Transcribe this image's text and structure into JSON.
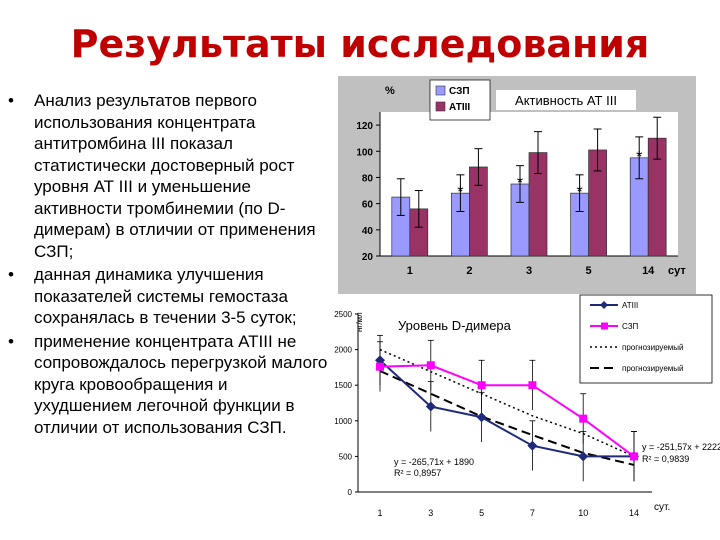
{
  "slide": {
    "title": "Результаты исследования",
    "bullet_symbol": "•",
    "bullets": [
      "Анализ результатов первого использования концентрата антитромбина III показал статистически достоверный рост уровня АТ III и уменьшение активности тромбинемии (по D-димерам) в отличии от применения СЗП;",
      "данная динамика улучшения показателей системы гемостаза сохранялась в течении 3-5 суток;",
      "применение концентрата АТIII не сопровождалось перегрузкой малого круга кровообращения и ухудшением легочной функции в отличии от использования СЗП."
    ]
  },
  "chart_data": [
    {
      "type": "bar",
      "title": "Активность АТ III",
      "ylabel": "%",
      "xlabel": "сут",
      "ylim": [
        20,
        130
      ],
      "yticks": [
        "20",
        "40",
        "60",
        "80",
        "100",
        "120"
      ],
      "categories": [
        "1",
        "2",
        "3",
        "5",
        "14"
      ],
      "series": [
        {
          "name": "СЗП",
          "values": [
            65,
            68,
            75,
            68,
            95
          ],
          "color": "#9999ff",
          "errors": [
            14,
            14,
            14,
            14,
            16
          ]
        },
        {
          "name": "АТIII",
          "values": [
            56,
            88,
            99,
            101,
            110
          ],
          "color": "#993366",
          "errors": [
            14,
            14,
            16,
            16,
            16
          ]
        }
      ],
      "annotations": [
        "*",
        "*",
        "*",
        "*"
      ],
      "legend_position": "top-left",
      "grid": false
    },
    {
      "type": "line",
      "title": "Уровень D-димера",
      "ylabel": "нг/мл",
      "xlabel": "сут.",
      "ylim": [
        0,
        2500
      ],
      "yticks": [
        "0",
        "500",
        "1000",
        "1500",
        "2000",
        "2500"
      ],
      "categories": [
        "1",
        "3",
        "5",
        "7",
        "10",
        "14"
      ],
      "series": [
        {
          "name": "АТIII",
          "values": [
            1850,
            1200,
            1050,
            650,
            500,
            500
          ],
          "color": "#1f2a7a",
          "marker": "diamond"
        },
        {
          "name": "СЗП",
          "values": [
            1760,
            1780,
            1500,
            1500,
            1030,
            500
          ],
          "color": "#ff00ff",
          "marker": "square"
        },
        {
          "name": "прогнозируемый",
          "style": "dotted",
          "values": [
            2000,
            1690,
            1380,
            1070,
            820,
            500
          ],
          "color": "#000000"
        },
        {
          "name": "прогнозируемый",
          "style": "dashed",
          "values": [
            1700,
            1380,
            1060,
            800,
            550,
            380
          ],
          "color": "#000000"
        }
      ],
      "trend_equations": [
        {
          "equation": "y = -265,71x + 1890",
          "r2": "R² = 0,8957"
        },
        {
          "equation": "y = -251,57x + 2222",
          "r2": "R² = 0,9839"
        }
      ],
      "legend_position": "top-right",
      "grid": false
    }
  ]
}
